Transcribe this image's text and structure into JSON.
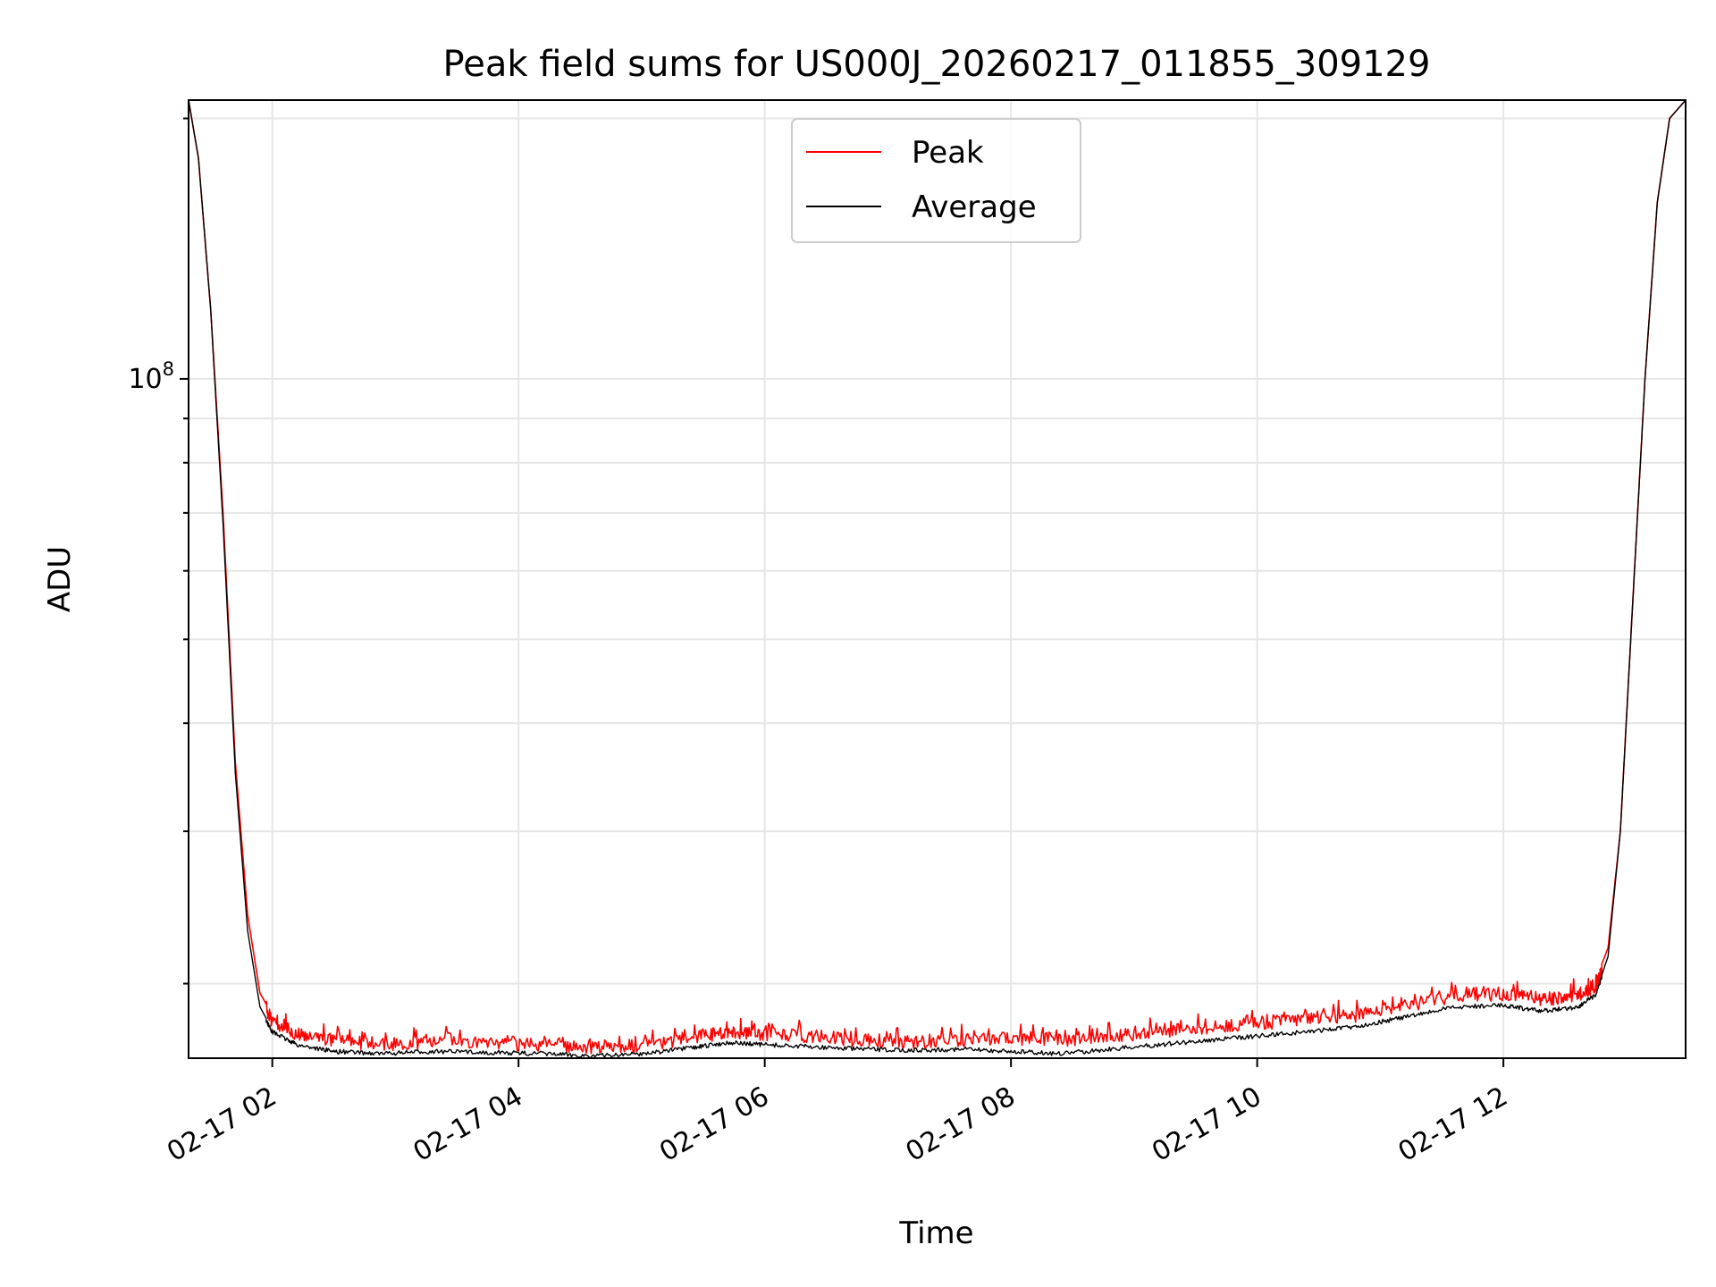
{
  "chart_data": {
    "type": "line",
    "title": "Peak field sums for US000J_20260217_011855_309129",
    "xlabel": "Time",
    "ylabel": "ADU",
    "y_scale": "log",
    "ylim": [
      16400000,
      210000000
    ],
    "xlim_hours": [
      1.32,
      13.48
    ],
    "grid": true,
    "legend": {
      "placement": "top-center",
      "entries": [
        "Peak",
        "Average"
      ]
    },
    "x_ticks": [
      {
        "hour": 2,
        "label": "02-17 02"
      },
      {
        "hour": 4,
        "label": "02-17 04"
      },
      {
        "hour": 6,
        "label": "02-17 06"
      },
      {
        "hour": 8,
        "label": "02-17 08"
      },
      {
        "hour": 10,
        "label": "02-17 10"
      },
      {
        "hour": 12,
        "label": "02-17 12"
      }
    ],
    "y_major_tick": {
      "value": 100000000,
      "label_base": "10",
      "label_exp": "8"
    },
    "y_minor_ticks": [
      20000000,
      30000000,
      40000000,
      50000000,
      60000000,
      70000000,
      80000000,
      90000000,
      200000000
    ],
    "series": [
      {
        "name": "Peak",
        "color": "#ff0000",
        "x_hours": [
          1.32,
          1.4,
          1.5,
          1.6,
          1.7,
          1.8,
          1.9,
          2.0,
          2.2,
          2.5,
          2.9,
          3.3,
          3.8,
          4.2,
          4.6,
          5.0,
          5.4,
          5.7,
          6.0,
          6.4,
          6.8,
          7.2,
          7.6,
          8.0,
          8.4,
          8.8,
          9.2,
          9.6,
          10.0,
          10.4,
          10.8,
          11.2,
          11.6,
          12.0,
          12.3,
          12.6,
          12.75,
          12.85,
          12.95,
          13.05,
          13.15,
          13.25,
          13.35,
          13.48
        ],
        "values": [
          210000000,
          180000000,
          120000000,
          70000000,
          36000000,
          24000000,
          19500000,
          18400000,
          17800000,
          17500000,
          17300000,
          17400000,
          17350000,
          17300000,
          17200000,
          17250000,
          17600000,
          17900000,
          17800000,
          17700000,
          17500000,
          17400000,
          17500000,
          17600000,
          17500000,
          17700000,
          17900000,
          18100000,
          18300000,
          18500000,
          18700000,
          19200000,
          19700000,
          19800000,
          19500000,
          19700000,
          20200000,
          22000000,
          30000000,
          55000000,
          100000000,
          160000000,
          200000000,
          210000000
        ]
      },
      {
        "name": "Average",
        "color": "#000000",
        "x_hours": [
          1.32,
          1.4,
          1.5,
          1.6,
          1.7,
          1.8,
          1.9,
          2.0,
          2.2,
          2.5,
          2.9,
          3.3,
          3.8,
          4.2,
          4.6,
          5.0,
          5.4,
          5.7,
          6.0,
          6.4,
          6.8,
          7.2,
          7.6,
          8.0,
          8.4,
          8.8,
          9.2,
          9.6,
          10.0,
          10.4,
          10.8,
          11.2,
          11.6,
          12.0,
          12.3,
          12.6,
          12.75,
          12.85,
          12.95,
          13.05,
          13.15,
          13.25,
          13.35,
          13.48
        ],
        "values": [
          210000000,
          180000000,
          120000000,
          68000000,
          35000000,
          23000000,
          18800000,
          17700000,
          17100000,
          16800000,
          16700000,
          16800000,
          16750000,
          16700000,
          16600000,
          16700000,
          16950000,
          17200000,
          17100000,
          17000000,
          16900000,
          16850000,
          16900000,
          16800000,
          16700000,
          16900000,
          17100000,
          17300000,
          17500000,
          17700000,
          17950000,
          18400000,
          18900000,
          19000000,
          18700000,
          18900000,
          19500000,
          21500000,
          30000000,
          55000000,
          100000000,
          160000000,
          200000000,
          210000000
        ]
      }
    ]
  }
}
